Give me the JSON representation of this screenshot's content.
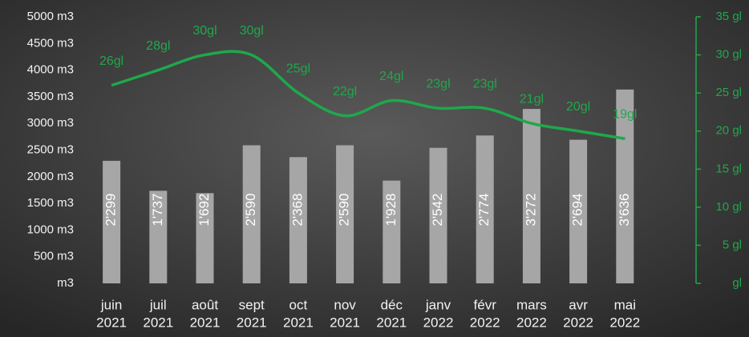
{
  "chart_data": {
    "type": "bar",
    "categories": [
      [
        "juin",
        "2021"
      ],
      [
        "juil",
        "2021"
      ],
      [
        "août",
        "2021"
      ],
      [
        "sept",
        "2021"
      ],
      [
        "oct",
        "2021"
      ],
      [
        "nov",
        "2021"
      ],
      [
        "déc",
        "2021"
      ],
      [
        "janv",
        "2022"
      ],
      [
        "févr",
        "2022"
      ],
      [
        "mars",
        "2022"
      ],
      [
        "avr",
        "2022"
      ],
      [
        "mai",
        "2022"
      ]
    ],
    "series": [
      {
        "type": "bar",
        "color": "#a6a6a6",
        "values": [
          2299,
          1737,
          1692,
          2590,
          2368,
          2590,
          1928,
          2542,
          2774,
          3272,
          2694,
          3636
        ],
        "value_labels": [
          "2'299",
          "1'737",
          "1'692",
          "2'590",
          "2'368",
          "2'590",
          "1'928",
          "2'542",
          "2'774",
          "3'272",
          "2'694",
          "3'636"
        ]
      },
      {
        "type": "line",
        "axis": "y2",
        "color": "#1fa84b",
        "values": [
          26,
          28,
          30,
          30,
          25,
          22,
          24,
          23,
          23,
          21,
          20,
          19
        ],
        "value_labels": [
          "26gl",
          "28gl",
          "30gl",
          "30gl",
          "25gl",
          "22gl",
          "24gl",
          "23gl",
          "23gl",
          "21gl",
          "20gl",
          "19gl"
        ]
      }
    ],
    "ylim": [
      0,
      5000
    ],
    "yticks": [
      {
        "value": 0,
        "label": "m3"
      },
      {
        "value": 500,
        "label": "500 m3"
      },
      {
        "value": 1000,
        "label": "1000 m3"
      },
      {
        "value": 1500,
        "label": "1500 m3"
      },
      {
        "value": 2000,
        "label": "2000 m3"
      },
      {
        "value": 2500,
        "label": "2500 m3"
      },
      {
        "value": 3000,
        "label": "3000 m3"
      },
      {
        "value": 3500,
        "label": "3500 m3"
      },
      {
        "value": 4000,
        "label": "4000 m3"
      },
      {
        "value": 4500,
        "label": "4500 m3"
      },
      {
        "value": 5000,
        "label": "5000 m3"
      }
    ],
    "y2lim": [
      0,
      35
    ],
    "y2ticks": [
      {
        "value": 0,
        "label": "gl"
      },
      {
        "value": 5,
        "label": "5 gl"
      },
      {
        "value": 10,
        "label": "10 gl"
      },
      {
        "value": 15,
        "label": "15 gl"
      },
      {
        "value": 20,
        "label": "20 gl"
      },
      {
        "value": 25,
        "label": "25 gl"
      },
      {
        "value": 30,
        "label": "30 gl"
      },
      {
        "value": 35,
        "label": "35 gl"
      }
    ]
  }
}
